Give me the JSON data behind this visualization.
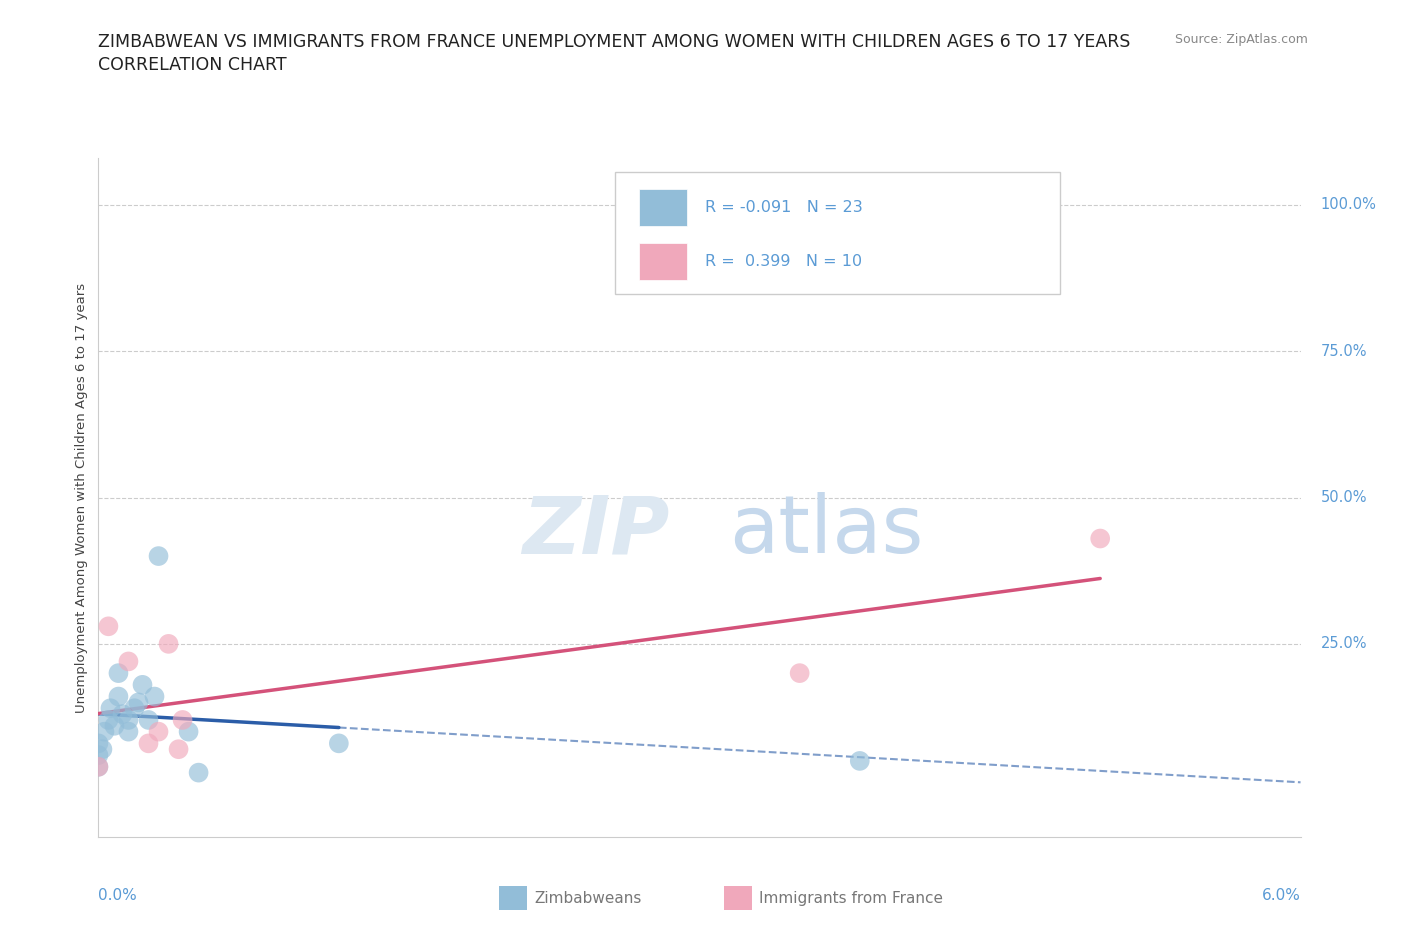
{
  "title_line1": "ZIMBABWEAN VS IMMIGRANTS FROM FRANCE UNEMPLOYMENT AMONG WOMEN WITH CHILDREN AGES 6 TO 17 YEARS",
  "title_line2": "CORRELATION CHART",
  "source_text": "Source: ZipAtlas.com",
  "ylabel": "Unemployment Among Women with Children Ages 6 to 17 years",
  "xlim": [
    0.0,
    6.0
  ],
  "ylim": [
    -8.0,
    108.0
  ],
  "ytick_vals": [
    0,
    25,
    50,
    75,
    100
  ],
  "ytick_labels_right": [
    "",
    "25.0%",
    "50.0%",
    "75.0%",
    "100.0%"
  ],
  "blue_scatter_color": "#92BDD8",
  "pink_scatter_color": "#F0A8BB",
  "blue_line_color": "#2B5DA8",
  "pink_line_color": "#D4527A",
  "axis_label_color": "#5B9BD5",
  "background_color": "#FFFFFF",
  "grid_color": "#CCCCCC",
  "title_color": "#222222",
  "source_color": "#888888",
  "legend_text_color": "#5B9BD5",
  "bottom_legend_color": "#777777",
  "blue_label": "Zimbabweans",
  "pink_label": "Immigrants from France",
  "legend_blue_text": "R = -0.091   N = 23",
  "legend_pink_text": "R =  0.399   N = 10",
  "zimbabwean_x": [
    0.0,
    0.0,
    0.0,
    0.02,
    0.03,
    0.05,
    0.06,
    0.08,
    0.1,
    0.1,
    0.12,
    0.15,
    0.15,
    0.18,
    0.2,
    0.22,
    0.25,
    0.28,
    0.3,
    0.45,
    0.5,
    1.2,
    3.8
  ],
  "zimbabwean_y": [
    8,
    4,
    6,
    7,
    10,
    12,
    14,
    11,
    16,
    20,
    13,
    10,
    12,
    14,
    15,
    18,
    12,
    16,
    40,
    10,
    3,
    8,
    5
  ],
  "france_x": [
    0.0,
    0.05,
    0.15,
    0.25,
    0.3,
    0.35,
    0.4,
    0.42,
    3.5,
    5.0
  ],
  "france_y": [
    4,
    28,
    22,
    8,
    10,
    25,
    7,
    12,
    20,
    43
  ],
  "solid_blue_x_end": 1.2,
  "solid_pink_x_end": 5.0
}
